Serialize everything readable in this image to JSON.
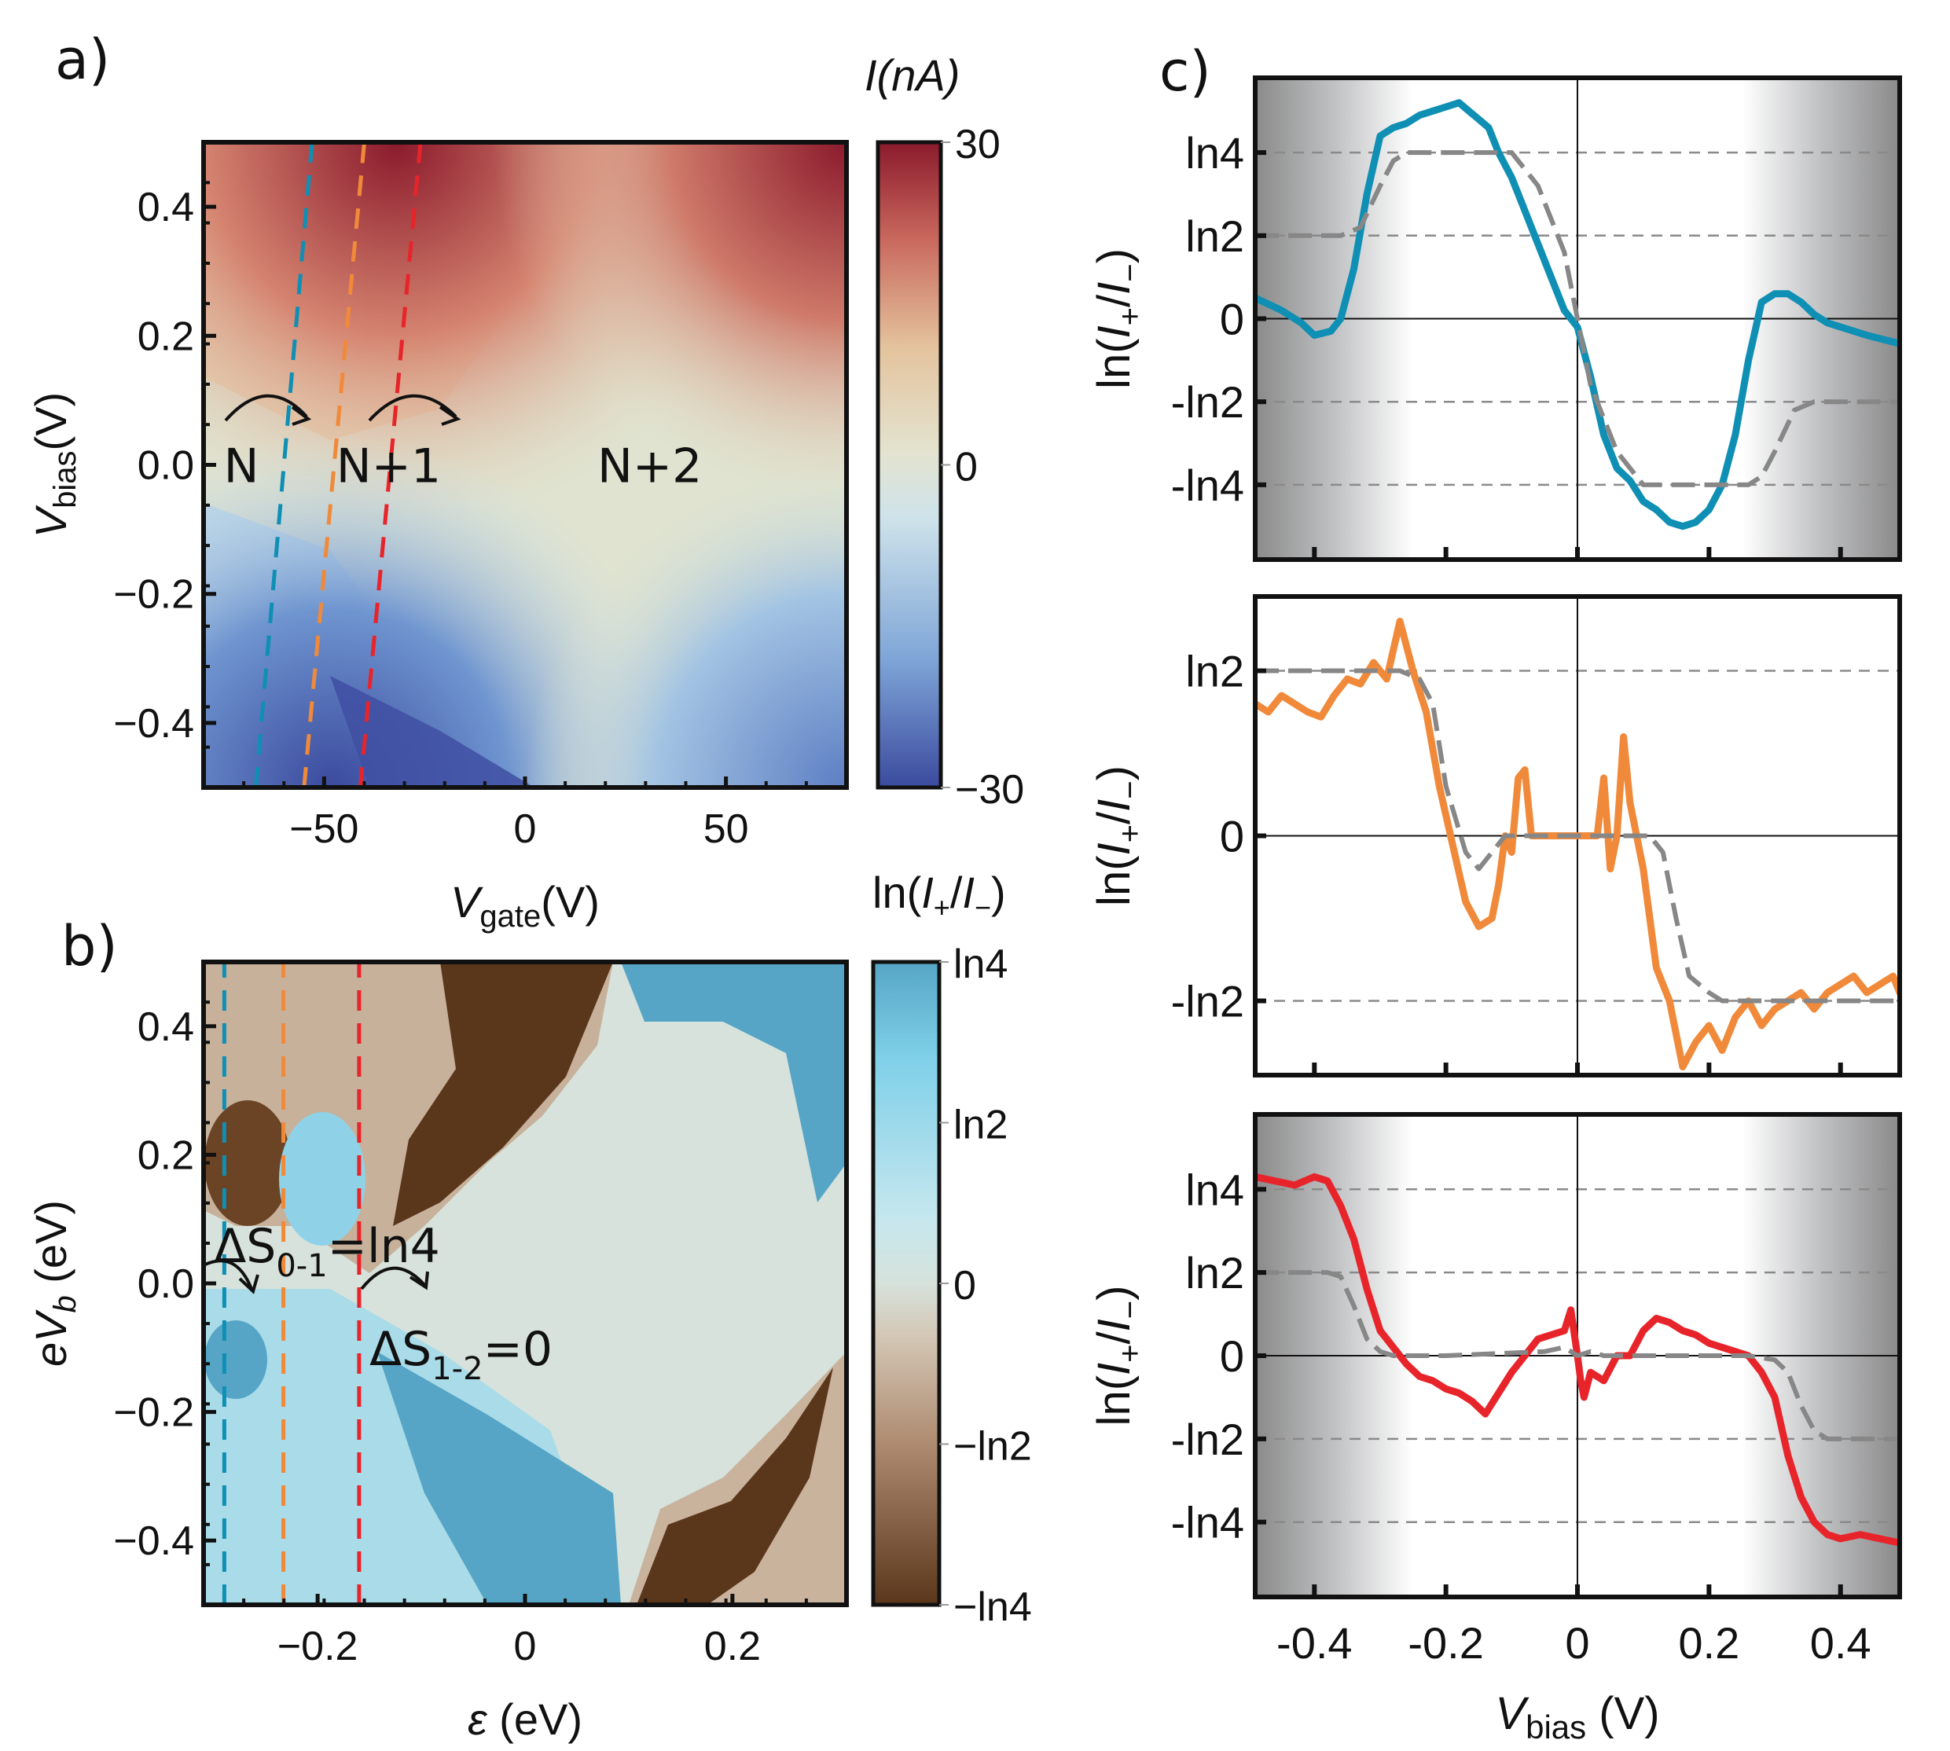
{
  "figure": {
    "panels": {
      "a": {
        "letter": "a)"
      },
      "b": {
        "letter": "b)"
      },
      "c": {
        "letter": "c)"
      }
    }
  },
  "chart_data": [
    {
      "id": "a",
      "type": "heatmap",
      "title": "",
      "xlabel_main": "V",
      "xlabel_sub": "gate",
      "xlabel_unit": "(V)",
      "ylabel_main": "V",
      "ylabel_sub": "bias",
      "ylabel_unit": "(V)",
      "xlim": [
        -80,
        80
      ],
      "ylim": [
        -0.5,
        0.5
      ],
      "xticks": [
        {
          "v": -50,
          "label": "−50"
        },
        {
          "v": 0,
          "label": "0"
        },
        {
          "v": 50,
          "label": "50"
        }
      ],
      "yticks": [
        {
          "v": 0.4,
          "label": "0.4"
        },
        {
          "v": 0.2,
          "label": "0.2"
        },
        {
          "v": 0.0,
          "label": "0.0"
        },
        {
          "v": -0.2,
          "label": "−0.2"
        },
        {
          "v": -0.4,
          "label": "−0.4"
        }
      ],
      "colorbar": {
        "title": "I(nA)",
        "range": [
          -30,
          30
        ],
        "ticks": [
          {
            "v": 30,
            "label": "30"
          },
          {
            "v": 0,
            "label": "0"
          },
          {
            "v": -30,
            "label": "−30"
          }
        ],
        "colors": [
          "#3b4a9e",
          "#7fa6d8",
          "#cfe3ea",
          "#e3e3cf",
          "#e4c49e",
          "#c9685d",
          "#8b1a2c"
        ]
      },
      "cut_lines": [
        {
          "name": "blue",
          "color": "#0f8fb4",
          "x_bottom": -67,
          "x_top": -53
        },
        {
          "name": "orange",
          "color": "#f08a3a",
          "x_bottom": -55,
          "x_top": -40
        },
        {
          "name": "red",
          "color": "#e8242b",
          "x_bottom": -41,
          "x_top": -26
        }
      ],
      "annotations": [
        {
          "text": "N",
          "x": -75,
          "y": 0.0
        },
        {
          "text": "N+1",
          "x": -47,
          "y": 0.0
        },
        {
          "text": "N+2",
          "x": 18,
          "y": 0.0
        }
      ],
      "arrows": [
        {
          "from": [
            -77,
            0.06
          ],
          "to": [
            -56,
            0.07
          ]
        },
        {
          "from": [
            -38,
            0.06
          ],
          "to": [
            -16,
            0.07
          ]
        }
      ]
    },
    {
      "id": "b",
      "type": "heatmap",
      "xlabel_main": "ε",
      "xlabel_unit": "(eV)",
      "ylabel_main": "eV",
      "ylabel_sub": "b",
      "ylabel_unit": "(eV)",
      "xlim": [
        -0.31,
        0.31
      ],
      "ylim": [
        -0.5,
        0.5
      ],
      "xticks": [
        {
          "v": -0.2,
          "label": "−0.2"
        },
        {
          "v": 0,
          "label": "0"
        },
        {
          "v": 0.2,
          "label": "0.2"
        }
      ],
      "yticks": [
        {
          "v": 0.4,
          "label": "0.4"
        },
        {
          "v": 0.2,
          "label": "0.2"
        },
        {
          "v": 0.0,
          "label": "0.0"
        },
        {
          "v": -0.2,
          "label": "−0.2"
        },
        {
          "v": -0.4,
          "label": "−0.4"
        }
      ],
      "colorbar": {
        "title": "ln(I+/I−)",
        "range": [
          -1.386,
          1.386
        ],
        "ticks": [
          {
            "v": 1.386,
            "label": "ln4"
          },
          {
            "v": 0.693,
            "label": "ln2"
          },
          {
            "v": 0,
            "label": "0"
          },
          {
            "v": -0.693,
            "label": "−ln2"
          },
          {
            "v": -1.386,
            "label": "−ln4"
          }
        ],
        "colors": [
          "#5a361b",
          "#9c7658",
          "#d4c7b6",
          "#d6e2db",
          "#c6e7ee",
          "#7fd0e8",
          "#56a5c6"
        ]
      },
      "cut_lines": [
        {
          "name": "blue",
          "color": "#0f8fb4",
          "x": -0.29
        },
        {
          "name": "orange",
          "color": "#f08a3a",
          "x": -0.233
        },
        {
          "name": "red",
          "color": "#e8242b",
          "x": -0.16
        }
      ],
      "annotations": [
        {
          "text": "ΔS",
          "sub": "0-1",
          "tail": "=ln4",
          "x": -0.3,
          "y": 0.06
        },
        {
          "text": "ΔS",
          "sub": "1-2",
          "tail": "=0",
          "x": -0.15,
          "y": -0.1
        }
      ]
    },
    {
      "id": "c",
      "type": "line",
      "xlabel_main": "V",
      "xlabel_sub": "bias",
      "xlabel_unit": "(V)",
      "ylabel": "ln(I+/I−)",
      "xlim": [
        -0.49,
        0.49
      ],
      "xticks": [
        {
          "v": -0.4,
          "label": "-0.4"
        },
        {
          "v": -0.2,
          "label": "-0.2"
        },
        {
          "v": 0,
          "label": "0"
        },
        {
          "v": 0.2,
          "label": "0.2"
        },
        {
          "v": 0.4,
          "label": "0.4"
        }
      ],
      "subplots": [
        {
          "name": "blue-cut",
          "color": "#0f8fb4",
          "shaded_edges": true,
          "ylim_ln2_units": [
            -2.9,
            2.9
          ],
          "yticks": [
            {
              "v": 2,
              "label": "ln4"
            },
            {
              "v": 1,
              "label": "ln2"
            },
            {
              "v": 0,
              "label": "0"
            },
            {
              "v": -1,
              "label": "-ln2"
            },
            {
              "v": -2,
              "label": "-ln4"
            }
          ],
          "measured": {
            "x": [
              -0.49,
              -0.45,
              -0.42,
              -0.4,
              -0.375,
              -0.36,
              -0.34,
              -0.32,
              -0.3,
              -0.28,
              -0.26,
              -0.24,
              -0.22,
              -0.2,
              -0.18,
              -0.165,
              -0.15,
              -0.135,
              -0.12,
              -0.1,
              -0.08,
              -0.06,
              -0.04,
              -0.02,
              0.0,
              0.02,
              0.04,
              0.06,
              0.08,
              0.1,
              0.12,
              0.14,
              0.16,
              0.18,
              0.2,
              0.22,
              0.24,
              0.26,
              0.28,
              0.3,
              0.32,
              0.34,
              0.36,
              0.38,
              0.4,
              0.44,
              0.49
            ],
            "y": [
              0.25,
              0.1,
              -0.05,
              -0.2,
              -0.15,
              0.0,
              0.6,
              1.5,
              2.2,
              2.3,
              2.35,
              2.45,
              2.5,
              2.55,
              2.6,
              2.5,
              2.4,
              2.3,
              2.0,
              1.7,
              1.3,
              0.9,
              0.5,
              0.1,
              -0.1,
              -0.7,
              -1.4,
              -1.8,
              -1.95,
              -2.2,
              -2.3,
              -2.45,
              -2.5,
              -2.45,
              -2.3,
              -2.0,
              -1.4,
              -0.5,
              0.2,
              0.3,
              0.3,
              0.2,
              0.05,
              -0.05,
              -0.1,
              -0.2,
              -0.3
            ]
          },
          "theory": {
            "x": [
              -0.49,
              -0.36,
              -0.33,
              -0.3,
              -0.28,
              -0.26,
              -0.1,
              -0.06,
              -0.02,
              0.0,
              0.02,
              0.06,
              0.1,
              0.26,
              0.28,
              0.3,
              0.33,
              0.36,
              0.49
            ],
            "y": [
              1,
              1,
              1.1,
              1.6,
              1.9,
              2,
              2,
              1.6,
              0.8,
              0,
              -0.8,
              -1.6,
              -2,
              -2,
              -1.9,
              -1.6,
              -1.1,
              -1,
              -1
            ]
          }
        },
        {
          "name": "orange-cut",
          "color": "#f08a3a",
          "shaded_edges": false,
          "ylim_ln2_units": [
            -1.45,
            1.45
          ],
          "yticks": [
            {
              "v": 1,
              "label": "ln2"
            },
            {
              "v": 0,
              "label": "0"
            },
            {
              "v": -1,
              "label": "-ln2"
            }
          ],
          "measured": {
            "x": [
              -0.49,
              -0.47,
              -0.45,
              -0.43,
              -0.41,
              -0.39,
              -0.37,
              -0.35,
              -0.33,
              -0.31,
              -0.29,
              -0.27,
              -0.25,
              -0.23,
              -0.21,
              -0.19,
              -0.17,
              -0.15,
              -0.13,
              -0.12,
              -0.11,
              -0.1,
              -0.09,
              -0.08,
              -0.07,
              -0.05,
              -0.03,
              0.0,
              0.03,
              0.04,
              0.05,
              0.06,
              0.07,
              0.08,
              0.09,
              0.1,
              0.12,
              0.14,
              0.16,
              0.18,
              0.2,
              0.22,
              0.24,
              0.26,
              0.28,
              0.3,
              0.32,
              0.34,
              0.36,
              0.38,
              0.4,
              0.42,
              0.44,
              0.46,
              0.48,
              0.49
            ],
            "y": [
              0.8,
              0.75,
              0.85,
              0.8,
              0.75,
              0.72,
              0.85,
              0.95,
              0.92,
              1.05,
              0.95,
              1.3,
              1.0,
              0.75,
              0.3,
              -0.05,
              -0.4,
              -0.55,
              -0.5,
              -0.3,
              0.0,
              -0.1,
              0.35,
              0.4,
              0.0,
              0.0,
              0.0,
              0.0,
              0.0,
              0.35,
              -0.2,
              0.0,
              0.6,
              0.2,
              0.0,
              -0.2,
              -0.8,
              -1.0,
              -1.4,
              -1.25,
              -1.15,
              -1.3,
              -1.1,
              -1.0,
              -1.15,
              -1.05,
              -1.0,
              -0.95,
              -1.05,
              -0.95,
              -0.9,
              -0.85,
              -0.95,
              -0.9,
              -0.85,
              -0.95
            ]
          },
          "theory": {
            "x": [
              -0.49,
              -0.27,
              -0.24,
              -0.22,
              -0.2,
              -0.17,
              -0.15,
              -0.13,
              -0.11,
              -0.09,
              0.0,
              0.11,
              0.13,
              0.15,
              0.17,
              0.2,
              0.22,
              0.24,
              0.27,
              0.49
            ],
            "y": [
              1,
              1,
              0.95,
              0.8,
              0.3,
              -0.1,
              -0.2,
              -0.1,
              0.0,
              0.0,
              0.0,
              0.0,
              -0.1,
              -0.5,
              -0.85,
              -0.95,
              -1,
              -1,
              -1,
              -1
            ]
          }
        },
        {
          "name": "red-cut",
          "color": "#e8242b",
          "shaded_edges": true,
          "ylim_ln2_units": [
            -2.9,
            2.9
          ],
          "yticks": [
            {
              "v": 2,
              "label": "ln4"
            },
            {
              "v": 1,
              "label": "ln2"
            },
            {
              "v": 0,
              "label": "0"
            },
            {
              "v": -1,
              "label": "-ln2"
            },
            {
              "v": -2,
              "label": "-ln4"
            }
          ],
          "measured": {
            "x": [
              -0.49,
              -0.46,
              -0.43,
              -0.4,
              -0.38,
              -0.36,
              -0.34,
              -0.32,
              -0.3,
              -0.28,
              -0.26,
              -0.24,
              -0.22,
              -0.2,
              -0.18,
              -0.16,
              -0.14,
              -0.12,
              -0.1,
              -0.08,
              -0.06,
              -0.04,
              -0.02,
              -0.01,
              0.0,
              0.005,
              0.01,
              0.02,
              0.04,
              0.06,
              0.08,
              0.1,
              0.12,
              0.14,
              0.16,
              0.18,
              0.2,
              0.22,
              0.24,
              0.26,
              0.28,
              0.3,
              0.32,
              0.34,
              0.36,
              0.38,
              0.4,
              0.43,
              0.46,
              0.49
            ],
            "y": [
              2.15,
              2.1,
              2.05,
              2.15,
              2.1,
              1.8,
              1.4,
              0.8,
              0.3,
              0.1,
              -0.1,
              -0.25,
              -0.3,
              -0.4,
              -0.45,
              -0.55,
              -0.7,
              -0.45,
              -0.2,
              0.0,
              0.2,
              0.25,
              0.3,
              0.55,
              0.0,
              -0.3,
              -0.5,
              -0.2,
              -0.3,
              0.0,
              0.0,
              0.3,
              0.45,
              0.4,
              0.3,
              0.25,
              0.15,
              0.1,
              0.05,
              0.0,
              -0.2,
              -0.5,
              -1.2,
              -1.7,
              -2.0,
              -2.15,
              -2.2,
              -2.15,
              -2.2,
              -2.25
            ]
          },
          "theory": {
            "x": [
              -0.49,
              -0.38,
              -0.36,
              -0.34,
              -0.32,
              -0.3,
              -0.28,
              -0.2,
              -0.05,
              -0.02,
              0.0,
              0.02,
              0.04,
              0.2,
              0.26,
              0.3,
              0.32,
              0.34,
              0.36,
              0.38,
              0.4,
              0.49
            ],
            "y": [
              1,
              1,
              0.95,
              0.6,
              0.2,
              0.05,
              0.0,
              0.0,
              0.05,
              0.1,
              0.0,
              0.05,
              0.0,
              0.0,
              0.0,
              -0.05,
              -0.2,
              -0.6,
              -0.9,
              -1.0,
              -1.0,
              -1.0
            ]
          }
        }
      ],
      "reference_lines_ln2_units": [
        2,
        1,
        -1,
        -2
      ]
    }
  ]
}
